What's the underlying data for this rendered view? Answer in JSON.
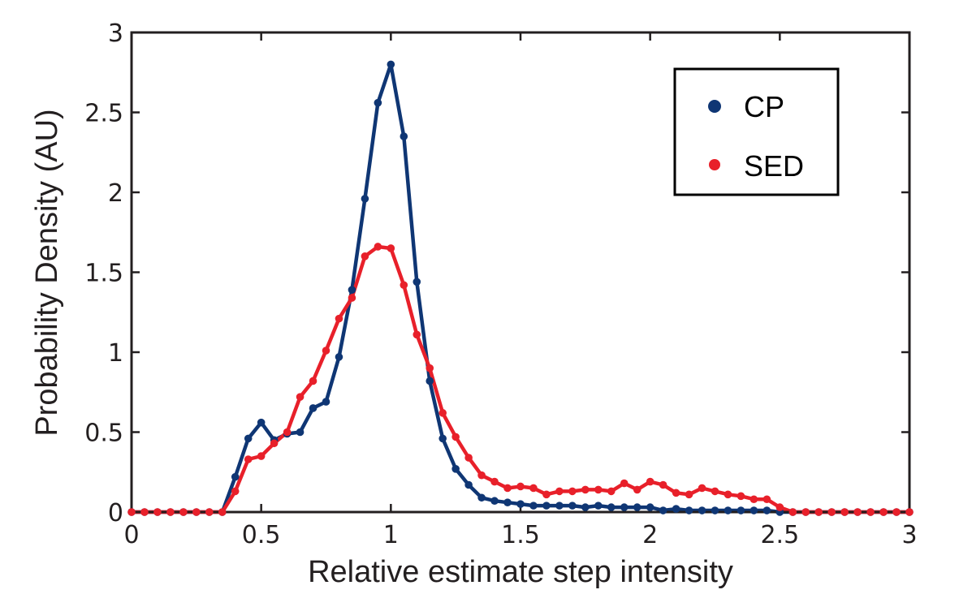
{
  "chart_data": {
    "type": "line",
    "title": "",
    "xlabel": "Relative estimate step intensity",
    "ylabel": "Probability Density (AU)",
    "xlim": [
      0,
      3
    ],
    "ylim": [
      0,
      3
    ],
    "xticks": [
      0,
      0.5,
      1,
      1.5,
      2,
      2.5,
      3
    ],
    "xtick_labels": [
      "0",
      "0.5",
      "1",
      "1.5",
      "2",
      "2.5",
      "3"
    ],
    "yticks": [
      0,
      0.5,
      1,
      1.5,
      2,
      2.5,
      3
    ],
    "ytick_labels": [
      "0",
      "0.5",
      "1",
      "1.5",
      "2",
      "2.5",
      "3"
    ],
    "grid": false,
    "legend_position": "top-right",
    "x": [
      0,
      0.05,
      0.1,
      0.15,
      0.2,
      0.25,
      0.3,
      0.35,
      0.4,
      0.45,
      0.5,
      0.55,
      0.6,
      0.65,
      0.7,
      0.75,
      0.8,
      0.85,
      0.9,
      0.95,
      1.0,
      1.05,
      1.1,
      1.15,
      1.2,
      1.25,
      1.3,
      1.35,
      1.4,
      1.45,
      1.5,
      1.55,
      1.6,
      1.65,
      1.7,
      1.75,
      1.8,
      1.85,
      1.9,
      1.95,
      2.0,
      2.05,
      2.1,
      2.15,
      2.2,
      2.25,
      2.3,
      2.35,
      2.4,
      2.45,
      2.5,
      2.55,
      2.6,
      2.65,
      2.7,
      2.75,
      2.8,
      2.85,
      2.9,
      2.95,
      3.0
    ],
    "series": [
      {
        "name": "CP",
        "color": "#0f3674",
        "values": [
          0,
          0,
          0,
          0,
          0,
          0,
          0,
          0,
          0.22,
          0.46,
          0.56,
          0.45,
          0.49,
          0.5,
          0.65,
          0.69,
          0.97,
          1.39,
          1.96,
          2.56,
          2.8,
          2.35,
          1.44,
          0.82,
          0.46,
          0.27,
          0.17,
          0.09,
          0.07,
          0.06,
          0.05,
          0.04,
          0.04,
          0.04,
          0.04,
          0.03,
          0.04,
          0.03,
          0.03,
          0.03,
          0.03,
          0.01,
          0.02,
          0.01,
          0.01,
          0.01,
          0.01,
          0.01,
          0.01,
          0.01,
          0,
          0,
          0,
          0,
          0,
          0,
          0,
          0,
          0,
          0,
          0
        ]
      },
      {
        "name": "SED",
        "color": "#e8202a",
        "values": [
          0,
          0,
          0,
          0,
          0,
          0,
          0,
          0,
          0.13,
          0.33,
          0.35,
          0.43,
          0.5,
          0.72,
          0.82,
          1.01,
          1.21,
          1.34,
          1.6,
          1.66,
          1.65,
          1.42,
          1.11,
          0.9,
          0.62,
          0.47,
          0.34,
          0.23,
          0.19,
          0.15,
          0.16,
          0.15,
          0.11,
          0.13,
          0.13,
          0.14,
          0.14,
          0.13,
          0.18,
          0.14,
          0.19,
          0.17,
          0.12,
          0.11,
          0.15,
          0.13,
          0.11,
          0.1,
          0.08,
          0.08,
          0.03,
          0,
          0,
          0,
          0,
          0,
          0,
          0,
          0,
          0,
          0
        ]
      }
    ]
  }
}
